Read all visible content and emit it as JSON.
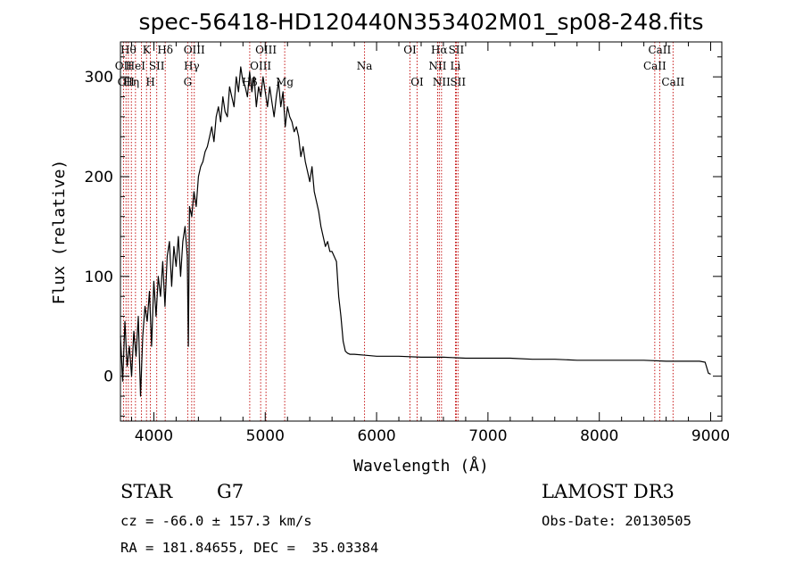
{
  "chart_data": {
    "type": "line",
    "title": "spec-56418-HD120440N353402M01_sp08-248.fits",
    "xlabel": "Wavelength (Å)",
    "ylabel": "Flux (relative)",
    "xlim": [
      3700,
      9100
    ],
    "ylim": [
      -45,
      335
    ],
    "xticks": [
      4000,
      5000,
      6000,
      7000,
      8000,
      9000
    ],
    "yticks": [
      0,
      100,
      200,
      300
    ],
    "grid": false,
    "series": [
      {
        "x": [
          3700,
          3720,
          3740,
          3760,
          3780,
          3800,
          3820,
          3840,
          3860,
          3880,
          3900,
          3920,
          3940,
          3960,
          3980,
          4000,
          4020,
          4040,
          4060,
          4080,
          4100,
          4120,
          4140,
          4160,
          4180,
          4200,
          4220,
          4240,
          4260,
          4280,
          4300,
          4310,
          4320,
          4340,
          4360,
          4380,
          4400,
          4420,
          4440,
          4460,
          4480,
          4500,
          4520,
          4540,
          4560,
          4580,
          4600,
          4620,
          4640,
          4660,
          4680,
          4700,
          4720,
          4740,
          4760,
          4780,
          4800,
          4820,
          4840,
          4860,
          4880,
          4900,
          4920,
          4940,
          4960,
          4980,
          5000,
          5020,
          5040,
          5060,
          5080,
          5100,
          5120,
          5140,
          5160,
          5180,
          5200,
          5220,
          5240,
          5260,
          5280,
          5300,
          5320,
          5340,
          5360,
          5380,
          5400,
          5420,
          5440,
          5460,
          5480,
          5500,
          5520,
          5540,
          5560,
          5580,
          5600,
          5620,
          5640,
          5660,
          5680,
          5700,
          5720,
          5740,
          5760,
          5800,
          5900,
          6000,
          6200,
          6400,
          6600,
          6800,
          7000,
          7200,
          7400,
          7600,
          7800,
          8000,
          8200,
          8400,
          8600,
          8800,
          8900,
          8950,
          8980,
          9000
        ],
        "y": [
          40,
          -5,
          55,
          10,
          30,
          0,
          45,
          20,
          60,
          -20,
          40,
          70,
          55,
          85,
          30,
          95,
          60,
          100,
          80,
          115,
          70,
          120,
          135,
          90,
          130,
          110,
          140,
          100,
          135,
          150,
          120,
          30,
          170,
          160,
          185,
          170,
          200,
          210,
          215,
          225,
          230,
          240,
          250,
          235,
          260,
          270,
          255,
          280,
          265,
          260,
          290,
          280,
          270,
          300,
          285,
          310,
          295,
          290,
          280,
          305,
          285,
          300,
          270,
          290,
          280,
          300,
          285,
          270,
          290,
          275,
          260,
          280,
          295,
          270,
          285,
          250,
          270,
          260,
          255,
          245,
          250,
          240,
          220,
          230,
          215,
          205,
          195,
          210,
          185,
          175,
          165,
          150,
          140,
          130,
          135,
          125,
          125,
          120,
          115,
          80,
          60,
          35,
          25,
          23,
          22,
          22,
          21,
          20,
          20,
          19,
          19,
          18,
          18,
          18,
          17,
          17,
          16,
          16,
          16,
          16,
          15,
          15,
          15,
          14,
          3,
          2
        ]
      }
    ],
    "lines": [
      {
        "w": 3727,
        "label": "OII",
        "row": 2
      },
      {
        "w": 3750,
        "label": "OII",
        "row": 3
      },
      {
        "w": 3771,
        "label": "Hθ",
        "row": 1
      },
      {
        "w": 3798,
        "label": "Hη",
        "row": 3
      },
      {
        "w": 3835,
        "label": "HeI",
        "row": 2
      },
      {
        "w": 3889,
        "label": "",
        "row": 1
      },
      {
        "w": 3934,
        "label": "K",
        "row": 1
      },
      {
        "w": 3969,
        "label": "H",
        "row": 3
      },
      {
        "w": 4026,
        "label": "SII",
        "row": 2
      },
      {
        "w": 4102,
        "label": "Hδ",
        "row": 1
      },
      {
        "w": 4304,
        "label": "G",
        "row": 3
      },
      {
        "w": 4340,
        "label": "Hγ",
        "row": 2
      },
      {
        "w": 4363,
        "label": "OIII",
        "row": 1
      },
      {
        "w": 4861,
        "label": "Hβ",
        "row": 3
      },
      {
        "w": 4959,
        "label": "OIII",
        "row": 2
      },
      {
        "w": 5007,
        "label": "OIII",
        "row": 1
      },
      {
        "w": 5175,
        "label": "Mg",
        "row": 3
      },
      {
        "w": 5892,
        "label": "Na",
        "row": 2
      },
      {
        "w": 6300,
        "label": "OI",
        "row": 1
      },
      {
        "w": 6364,
        "label": "OI",
        "row": 3
      },
      {
        "w": 6548,
        "label": "NII",
        "row": 2
      },
      {
        "w": 6563,
        "label": "Hα",
        "row": 1
      },
      {
        "w": 6583,
        "label": "NII",
        "row": 3
      },
      {
        "w": 6708,
        "label": "Li",
        "row": 2
      },
      {
        "w": 6716,
        "label": "SII",
        "row": 1
      },
      {
        "w": 6731,
        "label": "SII",
        "row": 3
      },
      {
        "w": 8498,
        "label": "CaII",
        "row": 2
      },
      {
        "w": 8542,
        "label": "CaII",
        "row": 1
      },
      {
        "w": 8662,
        "label": "CaII",
        "row": 3
      }
    ]
  },
  "info": {
    "class": "STAR",
    "subclass": "G7",
    "survey": "LAMOST DR3",
    "cz": "cz = -66.0 ± 157.3 km/s",
    "obs_date": "Obs-Date: 20130505",
    "radec": "RA = 181.84655, DEC =  35.03384"
  }
}
